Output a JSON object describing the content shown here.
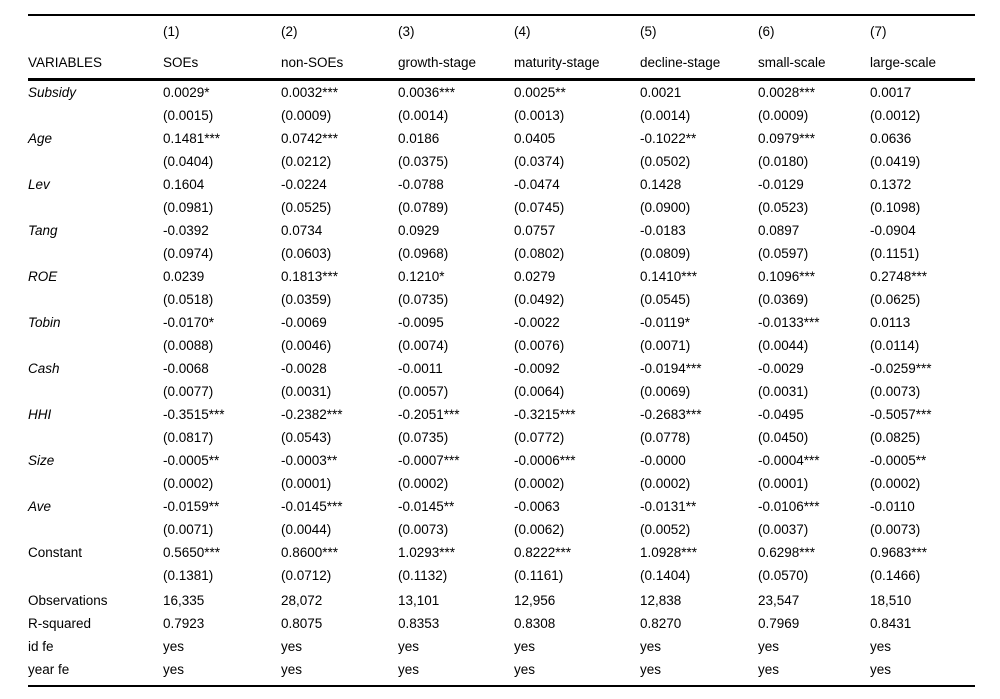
{
  "colors": {
    "background": "#ffffff",
    "text": "#000000",
    "rule": "#000000"
  },
  "table": {
    "header": {
      "numbers": [
        "(1)",
        "(2)",
        "(3)",
        "(4)",
        "(5)",
        "(6)",
        "(7)"
      ],
      "variables_label": "VARIABLES",
      "model_labels": [
        "SOEs",
        "non-SOEs",
        "growth-stage",
        "maturity-stage",
        "decline-stage",
        "small-scale",
        "large-scale"
      ]
    },
    "coef_rows": [
      {
        "label": "Subsidy",
        "italic": true,
        "coef": [
          "0.0029*",
          "0.0032***",
          "0.0036***",
          "0.0025**",
          "0.0021",
          "0.0028***",
          "0.0017"
        ],
        "se": [
          "(0.0015)",
          "(0.0009)",
          "(0.0014)",
          "(0.0013)",
          "(0.0014)",
          "(0.0009)",
          "(0.0012)"
        ]
      },
      {
        "label": "Age",
        "italic": true,
        "coef": [
          "0.1481***",
          "0.0742***",
          "0.0186",
          "0.0405",
          "-0.1022**",
          "0.0979***",
          "0.0636"
        ],
        "se": [
          "(0.0404)",
          "(0.0212)",
          "(0.0375)",
          "(0.0374)",
          "(0.0502)",
          "(0.0180)",
          "(0.0419)"
        ]
      },
      {
        "label": "Lev",
        "italic": true,
        "coef": [
          "0.1604",
          "-0.0224",
          "-0.0788",
          "-0.0474",
          "0.1428",
          "-0.0129",
          "0.1372"
        ],
        "se": [
          "(0.0981)",
          "(0.0525)",
          "(0.0789)",
          "(0.0745)",
          "(0.0900)",
          "(0.0523)",
          "(0.1098)"
        ]
      },
      {
        "label": "Tang",
        "italic": true,
        "coef": [
          "-0.0392",
          "0.0734",
          "0.0929",
          "0.0757",
          "-0.0183",
          "0.0897",
          "-0.0904"
        ],
        "se": [
          "(0.0974)",
          "(0.0603)",
          "(0.0968)",
          "(0.0802)",
          "(0.0809)",
          "(0.0597)",
          "(0.1151)"
        ]
      },
      {
        "label": "ROE",
        "italic": true,
        "coef": [
          "0.0239",
          "0.1813***",
          "0.1210*",
          "0.0279",
          "0.1410***",
          "0.1096***",
          "0.2748***"
        ],
        "se": [
          "(0.0518)",
          "(0.0359)",
          "(0.0735)",
          "(0.0492)",
          "(0.0545)",
          "(0.0369)",
          "(0.0625)"
        ]
      },
      {
        "label": "Tobin",
        "italic": true,
        "coef": [
          "-0.0170*",
          "-0.0069",
          "-0.0095",
          "-0.0022",
          "-0.0119*",
          "-0.0133***",
          "0.0113"
        ],
        "se": [
          "(0.0088)",
          "(0.0046)",
          "(0.0074)",
          "(0.0076)",
          "(0.0071)",
          "(0.0044)",
          "(0.0114)"
        ]
      },
      {
        "label": "Cash",
        "italic": true,
        "coef": [
          "-0.0068",
          "-0.0028",
          "-0.0011",
          "-0.0092",
          "-0.0194***",
          "-0.0029",
          "-0.0259***"
        ],
        "se": [
          "(0.0077)",
          "(0.0031)",
          "(0.0057)",
          "(0.0064)",
          "(0.0069)",
          "(0.0031)",
          "(0.0073)"
        ]
      },
      {
        "label": "HHI",
        "italic": true,
        "coef": [
          "-0.3515***",
          "-0.2382***",
          "-0.2051***",
          "-0.3215***",
          "-0.2683***",
          "-0.0495",
          "-0.5057***"
        ],
        "se": [
          "(0.0817)",
          "(0.0543)",
          "(0.0735)",
          "(0.0772)",
          "(0.0778)",
          "(0.0450)",
          "(0.0825)"
        ]
      },
      {
        "label": "Size",
        "italic": true,
        "coef": [
          "-0.0005**",
          "-0.0003**",
          "-0.0007***",
          "-0.0006***",
          "-0.0000",
          "-0.0004***",
          "-0.0005**"
        ],
        "se": [
          "(0.0002)",
          "(0.0001)",
          "(0.0002)",
          "(0.0002)",
          "(0.0002)",
          "(0.0001)",
          "(0.0002)"
        ]
      },
      {
        "label": "Ave",
        "italic": true,
        "coef": [
          "-0.0159**",
          "-0.0145***",
          "-0.0145**",
          "-0.0063",
          "-0.0131**",
          "-0.0106***",
          "-0.0110"
        ],
        "se": [
          "(0.0071)",
          "(0.0044)",
          "(0.0073)",
          "(0.0062)",
          "(0.0052)",
          "(0.0037)",
          "(0.0073)"
        ]
      },
      {
        "label": "Constant",
        "italic": false,
        "coef": [
          "0.5650***",
          "0.8600***",
          "1.0293***",
          "0.8222***",
          "1.0928***",
          "0.6298***",
          "0.9683***"
        ],
        "se": [
          "(0.1381)",
          "(0.0712)",
          "(0.1132)",
          "(0.1161)",
          "(0.1404)",
          "(0.0570)",
          "(0.1466)"
        ]
      }
    ],
    "stat_rows": [
      {
        "label": "Observations",
        "italic": false,
        "values": [
          "16,335",
          "28,072",
          "13,101",
          "12,956",
          "12,838",
          "23,547",
          "18,510"
        ]
      },
      {
        "label": "R-squared",
        "italic": false,
        "values": [
          "0.7923",
          "0.8075",
          "0.8353",
          "0.8308",
          "0.8270",
          "0.7969",
          "0.8431"
        ]
      },
      {
        "label": "id fe",
        "italic": false,
        "values": [
          "yes",
          "yes",
          "yes",
          "yes",
          "yes",
          "yes",
          "yes"
        ]
      },
      {
        "label": "year fe",
        "italic": false,
        "values": [
          "yes",
          "yes",
          "yes",
          "yes",
          "yes",
          "yes",
          "yes"
        ]
      }
    ]
  }
}
